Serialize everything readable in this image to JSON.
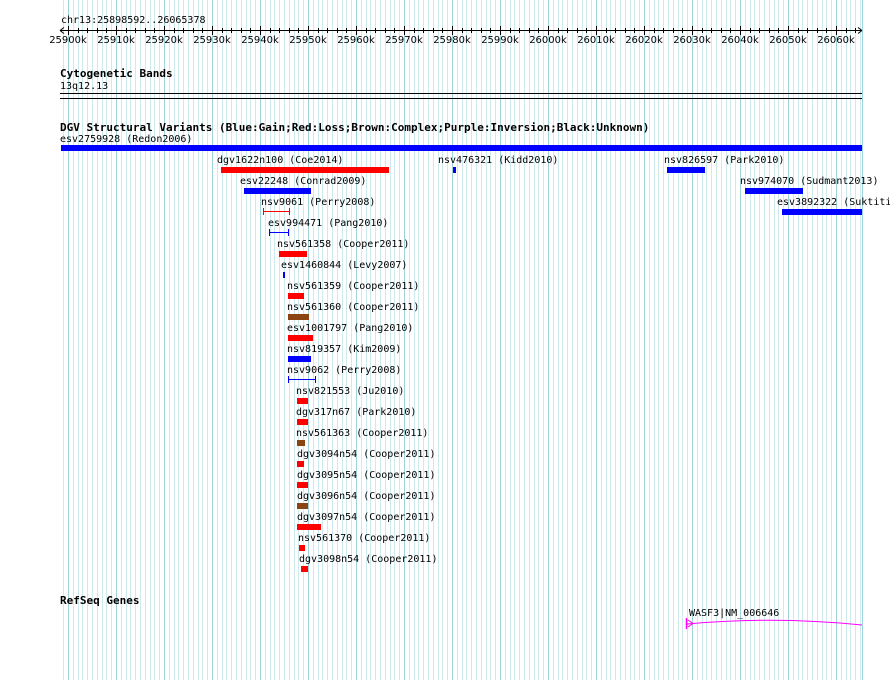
{
  "ruler": {
    "region_label": "chr13:25898592..26065378",
    "tick_labels": [
      "25900k",
      "25910k",
      "25920k",
      "25930k",
      "25940k",
      "25950k",
      "25960k",
      "25970k",
      "25980k",
      "25990k",
      "26000k",
      "26010k",
      "26020k",
      "26030k",
      "26040k",
      "26050k",
      "26060k"
    ]
  },
  "cytogenetic": {
    "title": "Cytogenetic Bands",
    "band": "13q12.13"
  },
  "dgv": {
    "title": "DGV Structural Variants (Blue:Gain;Red:Loss;Brown:Complex;Purple:Inversion;Black:Unknown)",
    "colors": {
      "gain": "#0000ff",
      "loss": "#ff0000",
      "complex": "#8b4513",
      "inversion": "#800080",
      "unknown": "#000000"
    },
    "variants": [
      {
        "label": "esv2759928 (Redon2006)",
        "start_kb": 25898.6,
        "end_kb": 26065.4,
        "type": "gain",
        "glyph": "bar"
      },
      {
        "label": "dgv1622n100 (Coe2014)",
        "start_kb": 25931.8,
        "end_kb": 25966.8,
        "type": "loss",
        "glyph": "bar"
      },
      {
        "label": "nsv476321 (Kidd2010)",
        "start_kb": 25980.3,
        "end_kb": 25980.8,
        "type": "gain",
        "glyph": "bar"
      },
      {
        "label": "nsv826597 (Park2010)",
        "start_kb": 26024.7,
        "end_kb": 26032.8,
        "type": "gain",
        "glyph": "bar"
      },
      {
        "label": "esv22248 (Conrad2009)",
        "start_kb": 25936.6,
        "end_kb": 25950.6,
        "type": "gain",
        "glyph": "bar"
      },
      {
        "label": "nsv974070 (Sudmant2013)",
        "start_kb": 26041.1,
        "end_kb": 26053.2,
        "type": "gain",
        "glyph": "bar"
      },
      {
        "label": "nsv9061 (Perry2008)",
        "start_kb": 25940.6,
        "end_kb": 25946.1,
        "type": "loss",
        "glyph": "range"
      },
      {
        "label": "esv3892322 (Suktiti",
        "start_kb": 26048.8,
        "end_kb": 26065.4,
        "type": "gain",
        "glyph": "bar"
      },
      {
        "label": "esv994471 (Pang2010)",
        "start_kb": 25941.8,
        "end_kb": 25945.8,
        "type": "gain",
        "glyph": "range"
      },
      {
        "label": "nsv561358 (Cooper2011)",
        "start_kb": 25943.9,
        "end_kb": 25949.8,
        "type": "loss",
        "glyph": "bar"
      },
      {
        "label": "esv1460844 (Levy2007)",
        "start_kb": 25944.7,
        "end_kb": 25945.1,
        "type": "gain",
        "glyph": "bar"
      },
      {
        "label": "nsv561359 (Cooper2011)",
        "start_kb": 25945.9,
        "end_kb": 25949.1,
        "type": "loss",
        "glyph": "bar"
      },
      {
        "label": "nsv561360 (Cooper2011)",
        "start_kb": 25945.9,
        "end_kb": 25950.2,
        "type": "complex",
        "glyph": "bar"
      },
      {
        "label": "esv1001797 (Pang2010)",
        "start_kb": 25945.9,
        "end_kb": 25951.1,
        "type": "loss",
        "glyph": "bar"
      },
      {
        "label": "nsv819357 (Kim2009)",
        "start_kb": 25945.9,
        "end_kb": 25950.7,
        "type": "gain",
        "glyph": "bar"
      },
      {
        "label": "nsv9062 (Perry2008)",
        "start_kb": 25945.9,
        "end_kb": 25951.5,
        "type": "gain",
        "glyph": "range"
      },
      {
        "label": "nsv821553 (Ju2010)",
        "start_kb": 25947.8,
        "end_kb": 25950.1,
        "type": "loss",
        "glyph": "bar"
      },
      {
        "label": "dgv317n67 (Park2010)",
        "start_kb": 25947.8,
        "end_kb": 25950.1,
        "type": "loss",
        "glyph": "bar"
      },
      {
        "label": "nsv561363 (Cooper2011)",
        "start_kb": 25947.8,
        "end_kb": 25949.4,
        "type": "complex",
        "glyph": "bar"
      },
      {
        "label": "dgv3094n54 (Cooper2011)",
        "start_kb": 25947.8,
        "end_kb": 25949.1,
        "type": "loss",
        "glyph": "bar"
      },
      {
        "label": "dgv3095n54 (Cooper2011)",
        "start_kb": 25947.8,
        "end_kb": 25950.1,
        "type": "loss",
        "glyph": "bar"
      },
      {
        "label": "dgv3096n54 (Cooper2011)",
        "start_kb": 25947.8,
        "end_kb": 25949.9,
        "type": "complex",
        "glyph": "bar"
      },
      {
        "label": "dgv3097n54 (Cooper2011)",
        "start_kb": 25947.8,
        "end_kb": 25952.7,
        "type": "loss",
        "glyph": "bar"
      },
      {
        "label": "nsv561370 (Cooper2011)",
        "start_kb": 25948.2,
        "end_kb": 25949.3,
        "type": "loss",
        "glyph": "bar"
      },
      {
        "label": "dgv3098n54 (Cooper2011)",
        "start_kb": 25948.6,
        "end_kb": 25950.0,
        "type": "loss",
        "glyph": "bar"
      }
    ]
  },
  "refseq": {
    "title": "RefSeq Genes",
    "gene_label": "WASF3|NM_006646",
    "gene_start_kb": 26028.7,
    "gene_end_kb": 26065.4,
    "gene_color": "#ff00ff"
  }
}
